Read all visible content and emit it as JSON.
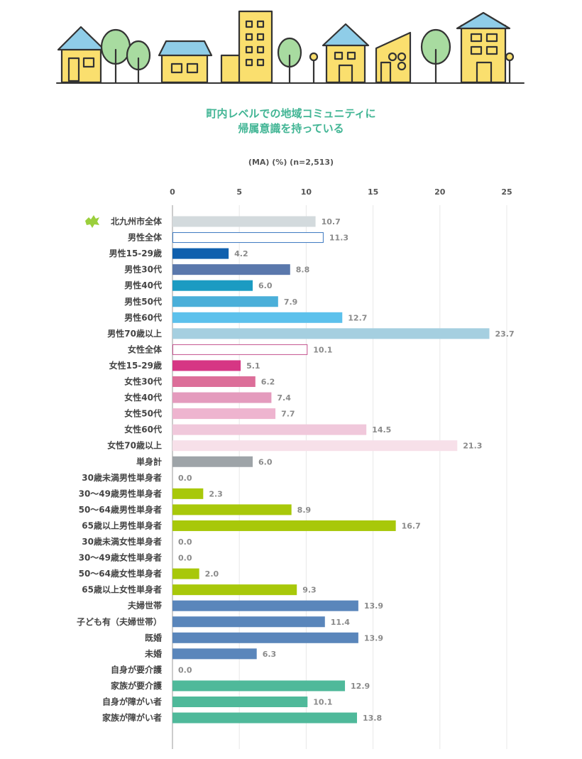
{
  "header": {
    "illustration": "town-buildings-and-trees"
  },
  "chart_title": {
    "line1": "町内レベルでの地域コミュニティに",
    "line2": "帰属意識を持っている"
  },
  "chart_data": {
    "type": "bar",
    "orientation": "horizontal",
    "subtitle": "(MA)  (%)  (n=2,513)",
    "xlim": [
      0,
      25
    ],
    "xticks": [
      0,
      5,
      10,
      15,
      20,
      25
    ],
    "grid": true,
    "bars": [
      {
        "label": "北九州市全体",
        "value": 10.7,
        "value_label": "10.7",
        "color": "#d3dadd",
        "outline": false,
        "icon": "kitakyushu-city-icon"
      },
      {
        "label": "男性全体",
        "value": 11.3,
        "value_label": "11.3",
        "color": "#3b78c0",
        "outline": true
      },
      {
        "label": "男性15-29歳",
        "value": 4.2,
        "value_label": "4.2",
        "color": "#1060ae",
        "outline": false
      },
      {
        "label": "男性30代",
        "value": 8.8,
        "value_label": "8.8",
        "color": "#5a78ac",
        "outline": false
      },
      {
        "label": "男性40代",
        "value": 6.0,
        "value_label": "6.0",
        "color": "#1b9bc2",
        "outline": false
      },
      {
        "label": "男性50代",
        "value": 7.9,
        "value_label": "7.9",
        "color": "#4aafd9",
        "outline": false
      },
      {
        "label": "男性60代",
        "value": 12.7,
        "value_label": "12.7",
        "color": "#5cc1ec",
        "outline": false
      },
      {
        "label": "男性70歳以上",
        "value": 23.7,
        "value_label": "23.7",
        "color": "#a5cfe0",
        "outline": false
      },
      {
        "label": "女性全体",
        "value": 10.1,
        "value_label": "10.1",
        "color": "#c3508c",
        "outline": true
      },
      {
        "label": "女性15-29歳",
        "value": 5.1,
        "value_label": "5.1",
        "color": "#d63684",
        "outline": false
      },
      {
        "label": "女性30代",
        "value": 6.2,
        "value_label": "6.2",
        "color": "#dc6e99",
        "outline": false
      },
      {
        "label": "女性40代",
        "value": 7.4,
        "value_label": "7.4",
        "color": "#e49bbd",
        "outline": false
      },
      {
        "label": "女性50代",
        "value": 7.7,
        "value_label": "7.7",
        "color": "#eeb4cf",
        "outline": false
      },
      {
        "label": "女性60代",
        "value": 14.5,
        "value_label": "14.5",
        "color": "#f0c8db",
        "outline": false
      },
      {
        "label": "女性70歳以上",
        "value": 21.3,
        "value_label": "21.3",
        "color": "#f7e0e9",
        "outline": false
      },
      {
        "label": "単身計",
        "value": 6.0,
        "value_label": "6.0",
        "color": "#9ea4a8",
        "outline": false
      },
      {
        "label": "30歳未満男性単身者",
        "value": 0.0,
        "value_label": "0.0",
        "color": "#a8c80a",
        "outline": false
      },
      {
        "label": "30〜49歳男性単身者",
        "value": 2.3,
        "value_label": "2.3",
        "color": "#a8c80a",
        "outline": false
      },
      {
        "label": "50〜64歳男性単身者",
        "value": 8.9,
        "value_label": "8.9",
        "color": "#a8c80a",
        "outline": false
      },
      {
        "label": "65歳以上男性単身者",
        "value": 16.7,
        "value_label": "16.7",
        "color": "#a8c80a",
        "outline": false
      },
      {
        "label": "30歳未満女性単身者",
        "value": 0.0,
        "value_label": "0.0",
        "color": "#a8c80a",
        "outline": false
      },
      {
        "label": "30〜49歳女性単身者",
        "value": 0.0,
        "value_label": "0.0",
        "color": "#a8c80a",
        "outline": false
      },
      {
        "label": "50〜64歳女性単身者",
        "value": 2.0,
        "value_label": "2.0",
        "color": "#a8c80a",
        "outline": false
      },
      {
        "label": "65歳以上女性単身者",
        "value": 9.3,
        "value_label": "9.3",
        "color": "#a8c80a",
        "outline": false
      },
      {
        "label": "夫婦世帯",
        "value": 13.9,
        "value_label": "13.9",
        "color": "#5a86bb",
        "outline": false
      },
      {
        "label": "子ども有（夫婦世帯）",
        "value": 11.4,
        "value_label": "11.4",
        "color": "#5a86bb",
        "outline": false
      },
      {
        "label": "既婚",
        "value": 13.9,
        "value_label": "13.9",
        "color": "#5a86bb",
        "outline": false
      },
      {
        "label": "未婚",
        "value": 6.3,
        "value_label": "6.3",
        "color": "#5a86bb",
        "outline": false
      },
      {
        "label": "自身が要介護",
        "value": 0.0,
        "value_label": "0.0",
        "color": "#4fb99a",
        "outline": false
      },
      {
        "label": "家族が要介護",
        "value": 12.9,
        "value_label": "12.9",
        "color": "#4fb99a",
        "outline": false
      },
      {
        "label": "自身が障がい者",
        "value": 10.1,
        "value_label": "10.1",
        "color": "#4fb99a",
        "outline": false
      },
      {
        "label": "家族が障がい者",
        "value": 13.8,
        "value_label": "13.8",
        "color": "#4fb99a",
        "outline": false
      }
    ]
  }
}
